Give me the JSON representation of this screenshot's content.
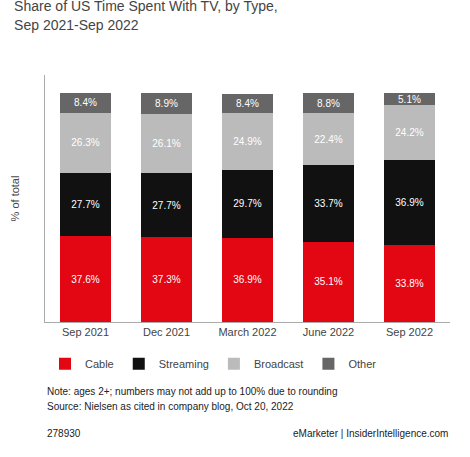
{
  "chart_data": {
    "type": "bar",
    "title": "Share of US Time Spent With TV, by Type,",
    "subtitle": "Sep 2021-Sep 2022",
    "ylabel": "% of total",
    "categories": [
      "Sep 2021",
      "Dec 2021",
      "March 2022",
      "June 2022",
      "Sep 2022"
    ],
    "series": [
      {
        "name": "Cable",
        "color": "#e30613",
        "values": [
          37.6,
          37.3,
          36.9,
          35.1,
          33.8
        ],
        "value_labels": [
          "37.6%",
          "37.3%",
          "36.9%",
          "35.1%",
          "33.8%"
        ]
      },
      {
        "name": "Streaming",
        "color": "#111111",
        "values": [
          27.7,
          27.7,
          29.7,
          33.7,
          36.9
        ],
        "value_labels": [
          "27.7%",
          "27.7%",
          "29.7%",
          "33.7%",
          "36.9%"
        ]
      },
      {
        "name": "Broadcast",
        "color": "#bbbbbb",
        "values": [
          26.3,
          26.1,
          24.9,
          22.4,
          24.2
        ],
        "value_labels": [
          "26.3%",
          "26.1%",
          "24.9%",
          "22.4%",
          "24.2%"
        ]
      },
      {
        "name": "Other",
        "color": "#666666",
        "values": [
          8.4,
          8.9,
          8.4,
          8.8,
          5.1
        ],
        "value_labels": [
          "8.4%",
          "8.9%",
          "8.4%",
          "8.8%",
          "5.1%"
        ]
      }
    ],
    "stacked": true,
    "data_labels": true,
    "ylim": [
      0,
      108
    ],
    "tick_labels": "x",
    "grid": false,
    "legend": "bottom",
    "annotations": [
      "Note: ages 2+; numbers may not add up to 100% due to rounding",
      "Source: Nielsen as cited in company blog, Oct 20, 2022",
      "278930",
      "eMarketer | InsiderIntelligence.com"
    ]
  }
}
